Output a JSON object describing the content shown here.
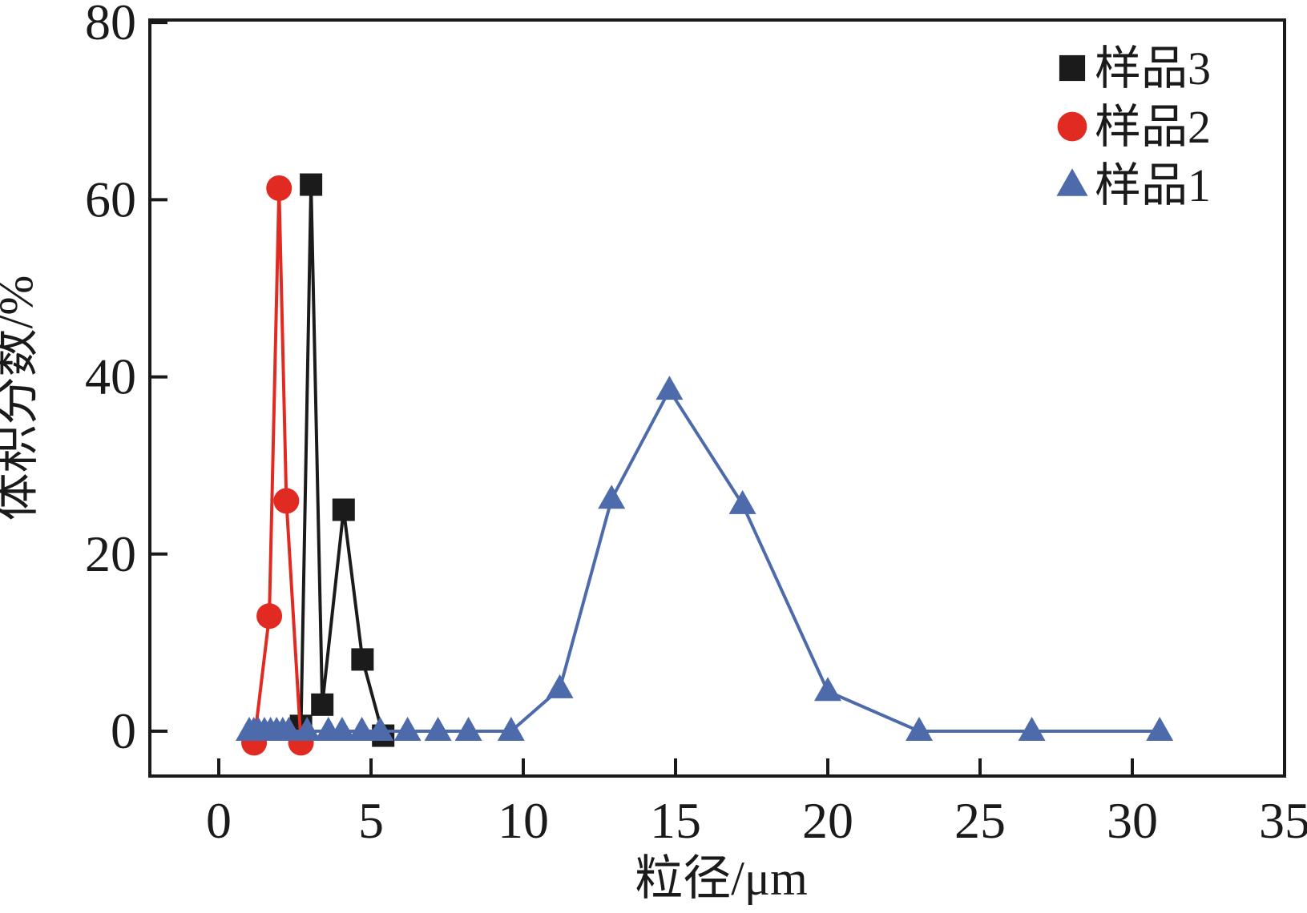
{
  "figure": {
    "background": "#ffffff",
    "ink_color": "#1a1a1a"
  },
  "chart_data": {
    "type": "line",
    "title": "",
    "xlabel": "粒径/μm",
    "ylabel": "体积分数/%",
    "xlim": [
      -2.263,
      35
    ],
    "ylim": [
      -5.06,
      80.28
    ],
    "xticks": [
      0,
      5,
      10,
      15,
      20,
      25,
      30,
      35
    ],
    "yticks": [
      0,
      20,
      40,
      60,
      80
    ],
    "grid": false,
    "frame": "box",
    "legend_position": "upper right",
    "series": [
      {
        "name": "样品3",
        "marker": "square",
        "color": "#1b1b1b",
        "points": [
          [
            2.7,
            0.6
          ],
          [
            3.03,
            61.7
          ],
          [
            3.4,
            3.0
          ],
          [
            4.1,
            25.0
          ],
          [
            4.72,
            8.1
          ],
          [
            5.4,
            -0.5
          ]
        ]
      },
      {
        "name": "样品2",
        "marker": "circle",
        "color": "#e12a22",
        "points": [
          [
            1.16,
            -1.3
          ],
          [
            1.66,
            13.0
          ],
          [
            1.98,
            61.3
          ],
          [
            2.22,
            26.0
          ],
          [
            2.7,
            -1.3
          ]
        ]
      },
      {
        "name": "样品1",
        "marker": "triangle-up",
        "color": "#4d6aab",
        "points": [
          [
            1.0,
            0
          ],
          [
            1.15,
            0
          ],
          [
            1.3,
            0
          ],
          [
            1.5,
            0
          ],
          [
            1.7,
            0
          ],
          [
            1.9,
            0
          ],
          [
            2.1,
            0
          ],
          [
            2.3,
            0
          ],
          [
            2.9,
            0
          ],
          [
            3.6,
            0
          ],
          [
            4.05,
            0
          ],
          [
            4.7,
            0
          ],
          [
            5.3,
            0
          ],
          [
            6.2,
            0
          ],
          [
            7.2,
            0
          ],
          [
            8.2,
            0
          ],
          [
            9.6,
            0
          ],
          [
            11.2,
            4.8
          ],
          [
            12.9,
            26.2
          ],
          [
            14.8,
            38.5
          ],
          [
            17.2,
            25.6
          ],
          [
            20.0,
            4.5
          ],
          [
            23.0,
            0
          ],
          [
            26.7,
            0
          ],
          [
            30.9,
            0
          ]
        ]
      }
    ]
  }
}
